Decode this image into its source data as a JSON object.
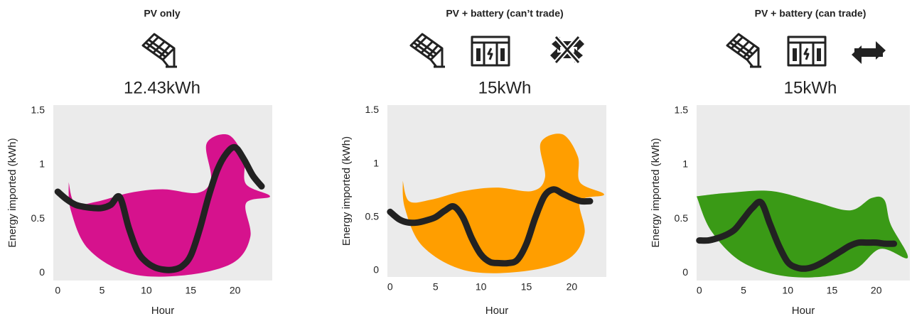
{
  "chart_data": [
    {
      "type": "line",
      "title": "PV only",
      "energy": "12.43kWh",
      "xlabel": "Hour",
      "ylabel": "Energy imported (kWh)",
      "color": "#d6128d",
      "line_color": "#222222",
      "plot_bg": "#ebebeb",
      "x": [
        0,
        1,
        2,
        3,
        4,
        5,
        6,
        7,
        8,
        9,
        10,
        11,
        12,
        13,
        14,
        15,
        16,
        17,
        18,
        19,
        20,
        21,
        22,
        23
      ],
      "values": [
        0.75,
        0.68,
        0.63,
        0.61,
        0.6,
        0.6,
        0.63,
        0.7,
        0.42,
        0.2,
        0.1,
        0.05,
        0.03,
        0.03,
        0.06,
        0.16,
        0.4,
        0.7,
        0.95,
        1.1,
        1.16,
        1.05,
        0.9,
        0.8
      ],
      "xlim": [
        -0.5,
        24.2
      ],
      "ylim": [
        -0.07,
        1.55
      ],
      "xticks": [
        0,
        5,
        10,
        15,
        20
      ],
      "yticks": [
        0,
        0.5,
        1,
        1.5
      ]
    },
    {
      "type": "line",
      "title": "PV + battery (can’t trade)",
      "energy": "15kWh",
      "xlabel": "Hour",
      "ylabel": "Energy imported (kWh)",
      "color": "#ff9e00",
      "line_color": "#222222",
      "plot_bg": "#ebebeb",
      "x": [
        0,
        1,
        2,
        3,
        4,
        5,
        6,
        7,
        8,
        9,
        10,
        11,
        12,
        13,
        14,
        15,
        16,
        17,
        18,
        19,
        20,
        21,
        22
      ],
      "values": [
        0.55,
        0.48,
        0.45,
        0.45,
        0.47,
        0.5,
        0.56,
        0.6,
        0.5,
        0.3,
        0.15,
        0.08,
        0.07,
        0.07,
        0.1,
        0.25,
        0.5,
        0.7,
        0.76,
        0.72,
        0.68,
        0.65,
        0.65
      ],
      "xlim": [
        -0.3,
        23.8
      ],
      "ylim": [
        -0.06,
        1.55
      ],
      "xticks": [
        0,
        5,
        10,
        15,
        20
      ],
      "yticks": [
        0,
        0.5,
        1,
        1.5
      ]
    },
    {
      "type": "line",
      "title": "PV + battery (can trade)",
      "energy": "15kWh",
      "xlabel": "Hour",
      "ylabel": "Energy imported (kWh)",
      "color": "#3a9a16",
      "line_color": "#222222",
      "plot_bg": "#ebebeb",
      "x": [
        0,
        1,
        2,
        3,
        4,
        5,
        6,
        7,
        8,
        9,
        10,
        11,
        12,
        13,
        14,
        15,
        16,
        17,
        18,
        19,
        20,
        21,
        22
      ],
      "values": [
        0.3,
        0.3,
        0.32,
        0.35,
        0.4,
        0.5,
        0.6,
        0.65,
        0.45,
        0.25,
        0.1,
        0.05,
        0.04,
        0.06,
        0.1,
        0.15,
        0.2,
        0.25,
        0.28,
        0.28,
        0.28,
        0.27,
        0.27
      ],
      "xlim": [
        -0.3,
        23.8
      ],
      "ylim": [
        -0.07,
        1.55
      ],
      "xticks": [
        0,
        5,
        10,
        15,
        20
      ],
      "yticks": [
        0,
        0.5,
        1,
        1.5
      ]
    }
  ]
}
